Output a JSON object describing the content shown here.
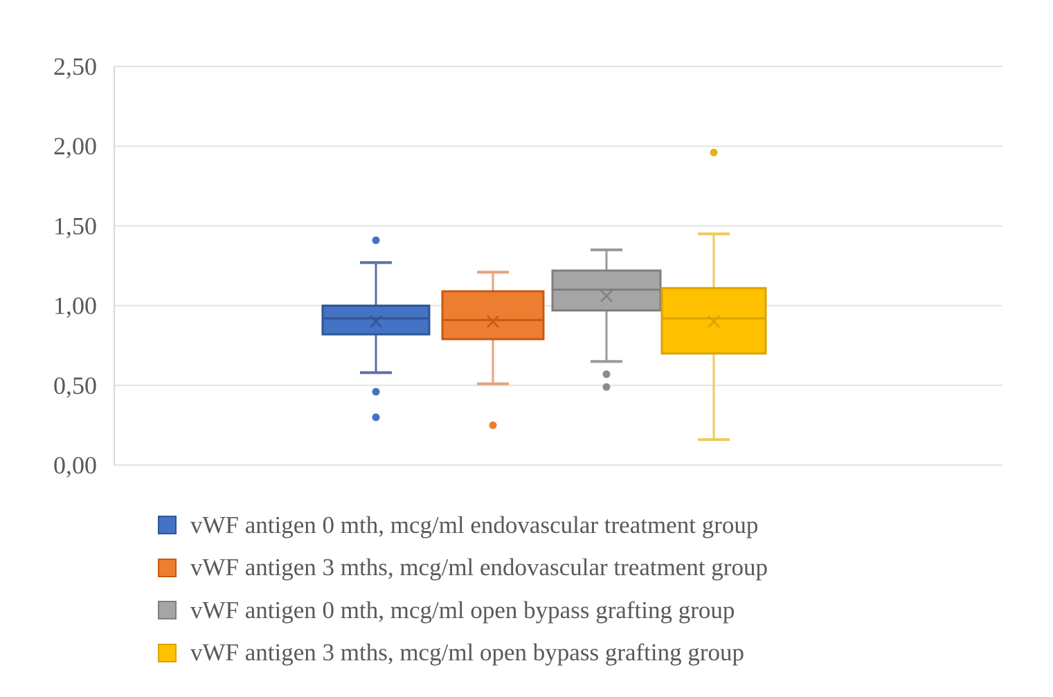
{
  "chart_data": {
    "type": "boxplot",
    "title": "",
    "xlabel": "",
    "ylabel": "",
    "ylim": [
      0,
      2.5
    ],
    "yticks": [
      0,
      0.5,
      1.0,
      1.5,
      2.0,
      2.5
    ],
    "ytick_labels": [
      "0,00",
      "0,50",
      "1,00",
      "1,50",
      "2,00",
      "2,50"
    ],
    "grid": true,
    "legend_position": "bottom",
    "series": [
      {
        "name": "vWF antigen 0 mth, mcg/ml endovascular treatment group",
        "color": "#4472C4",
        "whisker_low": 0.58,
        "q1": 0.82,
        "median": 0.92,
        "q3": 1.0,
        "whisker_high": 1.27,
        "mean": 0.9,
        "outliers": [
          1.41,
          0.46,
          0.3
        ]
      },
      {
        "name": "vWF antigen 3 mths, mcg/ml endovascular treatment group",
        "color": "#ED7D31",
        "whisker_low": 0.51,
        "q1": 0.79,
        "median": 0.91,
        "q3": 1.09,
        "whisker_high": 1.21,
        "mean": 0.9,
        "outliers": [
          0.25
        ]
      },
      {
        "name": "vWF antigen 0 mth, mcg/ml open bypass grafting group",
        "color": "#A5A5A5",
        "whisker_low": 0.65,
        "q1": 0.97,
        "median": 1.1,
        "q3": 1.22,
        "whisker_high": 1.35,
        "mean": 1.06,
        "outliers": [
          0.57,
          0.49
        ]
      },
      {
        "name": "vWF antigen 3 mths, mcg/ml open bypass grafting group",
        "color": "#FFC000",
        "whisker_low": 0.16,
        "q1": 0.7,
        "median": 0.92,
        "q3": 1.11,
        "whisker_high": 1.45,
        "mean": 0.9,
        "outliers": [
          1.96
        ]
      }
    ]
  }
}
